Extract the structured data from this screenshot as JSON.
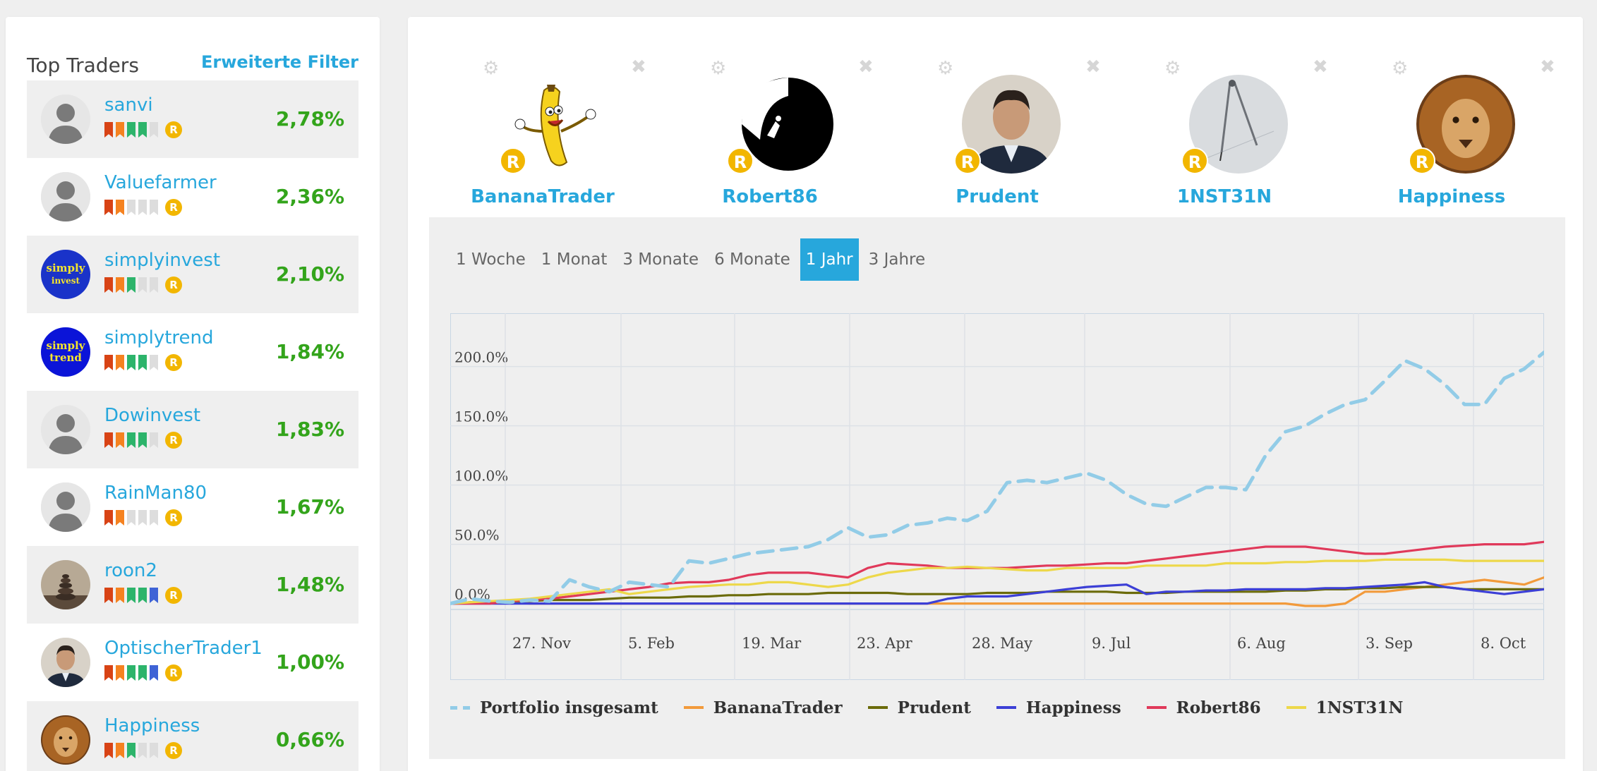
{
  "left_panel": {
    "title": "Top Traders",
    "filter_link": "Erweiterte Filter",
    "traders": [
      {
        "name": "sanvi",
        "perf": "2,78%",
        "avatar": "silhouette",
        "flags": [
          "#d84315",
          "#f58220",
          "#2db46b",
          "#2db46b",
          "#dddddd"
        ]
      },
      {
        "name": "Valuefarmer",
        "perf": "2,36%",
        "avatar": "silhouette",
        "flags": [
          "#d84315",
          "#f58220",
          "#dddddd",
          "#dddddd",
          "#dddddd"
        ]
      },
      {
        "name": "simplyinvest",
        "perf": "2,10%",
        "avatar": "simply-invest",
        "flags": [
          "#d84315",
          "#f58220",
          "#2db46b",
          "#dddddd",
          "#dddddd"
        ],
        "logo_text": [
          "simply",
          "invest"
        ]
      },
      {
        "name": "simplytrend",
        "perf": "1,84%",
        "avatar": "simply-trend",
        "flags": [
          "#d84315",
          "#f58220",
          "#2db46b",
          "#2db46b",
          "#dddddd"
        ],
        "logo_text": [
          "simply",
          "trend"
        ]
      },
      {
        "name": "Dowinvest",
        "perf": "1,83%",
        "avatar": "silhouette",
        "flags": [
          "#d84315",
          "#f58220",
          "#2db46b",
          "#2db46b",
          "#dddddd"
        ]
      },
      {
        "name": "RainMan80",
        "perf": "1,67%",
        "avatar": "silhouette",
        "flags": [
          "#d84315",
          "#f58220",
          "#dddddd",
          "#dddddd",
          "#dddddd"
        ]
      },
      {
        "name": "roon2",
        "perf": "1,48%",
        "avatar": "stones",
        "flags": [
          "#d84315",
          "#f58220",
          "#2db46b",
          "#2db46b",
          "#3e63d6"
        ]
      },
      {
        "name": "OptischerTrader1",
        "perf": "1,00%",
        "avatar": "man-portrait",
        "flags": [
          "#d84315",
          "#f58220",
          "#2db46b",
          "#2db46b",
          "#3e63d6"
        ]
      },
      {
        "name": "Happiness",
        "perf": "0,66%",
        "avatar": "lion",
        "flags": [
          "#d84315",
          "#f58220",
          "#2db46b",
          "#dddddd",
          "#dddddd"
        ]
      }
    ],
    "rating_badge": "R"
  },
  "compare": {
    "cards": [
      {
        "name": "BananaTrader",
        "avatar": "banana"
      },
      {
        "name": "Robert86",
        "avatar": "climber"
      },
      {
        "name": "Prudent",
        "avatar": "man-portrait"
      },
      {
        "name": "1NST31N",
        "avatar": "compass"
      },
      {
        "name": "Happiness",
        "avatar": "lion"
      }
    ],
    "rating_badge": "R",
    "gear_glyph": "⚙",
    "close_glyph": "✖"
  },
  "range_tabs": [
    {
      "label": "1 Woche",
      "active": false
    },
    {
      "label": "1 Monat",
      "active": false
    },
    {
      "label": "3 Monate",
      "active": false
    },
    {
      "label": "6 Monate",
      "active": false
    },
    {
      "label": "1 Jahr",
      "active": true
    },
    {
      "label": "3 Jahre",
      "active": false
    }
  ],
  "colors": {
    "accent": "#27a7dc",
    "positive": "#33a41b",
    "rating": "#f2b600"
  },
  "chart_data": {
    "type": "line",
    "x_ticks": [
      "27. Nov",
      "5. Feb",
      "19. Mar",
      "23. Apr",
      "28. May",
      "9. Jul",
      "6. Aug",
      "3. Sep",
      "8. Oct"
    ],
    "y_ticks": [
      "0.0%",
      "50.0%",
      "100.0%",
      "150.0%",
      "200.0%"
    ],
    "ylim": [
      -5,
      245
    ],
    "grid": true,
    "legend_position": "bottom",
    "series": [
      {
        "name": "Portfolio insgesamt",
        "color": "#92cce7",
        "dashed": true,
        "values": [
          0,
          4,
          2,
          1,
          3,
          2,
          20,
          14,
          10,
          18,
          16,
          14,
          36,
          34,
          38,
          42,
          44,
          46,
          48,
          54,
          64,
          56,
          58,
          66,
          68,
          72,
          70,
          78,
          102,
          104,
          102,
          106,
          110,
          104,
          92,
          84,
          82,
          90,
          98,
          98,
          96,
          125,
          145,
          150,
          160,
          168,
          172,
          188,
          205,
          198,
          185,
          168,
          168,
          190,
          198,
          212
        ]
      },
      {
        "name": "BananaTrader",
        "color": "#f29a3b",
        "values": [
          0,
          1,
          1,
          1,
          0,
          0,
          0,
          0,
          0,
          0,
          0,
          0,
          0,
          0,
          0,
          0,
          0,
          0,
          0,
          0,
          0,
          0,
          0,
          0,
          0,
          0,
          0,
          0,
          0,
          0,
          0,
          0,
          0,
          0,
          0,
          0,
          0,
          0,
          0,
          0,
          0,
          0,
          0,
          -2,
          -2,
          0,
          10,
          10,
          12,
          14,
          16,
          18,
          20,
          18,
          16,
          22
        ]
      },
      {
        "name": "Prudent",
        "color": "#6b6b0a",
        "values": [
          0,
          1,
          2,
          2,
          2,
          3,
          3,
          3,
          4,
          5,
          5,
          5,
          6,
          6,
          7,
          7,
          8,
          8,
          8,
          9,
          9,
          9,
          9,
          8,
          8,
          8,
          8,
          9,
          9,
          9,
          10,
          10,
          10,
          10,
          9,
          9,
          9,
          10,
          10,
          10,
          10,
          10,
          11,
          11,
          12,
          12,
          13,
          13,
          14,
          14,
          14,
          12,
          12,
          12,
          12,
          12
        ]
      },
      {
        "name": "Happiness",
        "color": "#3c3fd6",
        "values": [
          0,
          0,
          0,
          0,
          0,
          0,
          0,
          0,
          0,
          0,
          0,
          0,
          0,
          0,
          0,
          0,
          0,
          0,
          0,
          0,
          0,
          0,
          0,
          0,
          0,
          4,
          6,
          6,
          6,
          8,
          10,
          12,
          14,
          15,
          16,
          8,
          10,
          10,
          11,
          11,
          12,
          12,
          12,
          12,
          13,
          13,
          14,
          15,
          16,
          18,
          14,
          12,
          10,
          8,
          10,
          12
        ]
      },
      {
        "name": "Robert86",
        "color": "#e0395a",
        "values": [
          0,
          0,
          0,
          2,
          3,
          4,
          6,
          8,
          10,
          12,
          14,
          17,
          18,
          18,
          20,
          24,
          26,
          26,
          26,
          24,
          22,
          30,
          34,
          33,
          32,
          30,
          30,
          30,
          30,
          31,
          32,
          32,
          33,
          34,
          34,
          36,
          38,
          40,
          42,
          44,
          46,
          48,
          48,
          48,
          46,
          44,
          42,
          42,
          44,
          46,
          48,
          49,
          50,
          50,
          50,
          52
        ]
      },
      {
        "name": "1NST31N",
        "color": "#edd84a",
        "values": [
          0,
          1,
          2,
          3,
          4,
          6,
          8,
          10,
          12,
          8,
          10,
          12,
          14,
          15,
          16,
          16,
          18,
          18,
          16,
          14,
          16,
          22,
          26,
          28,
          30,
          30,
          31,
          30,
          29,
          28,
          28,
          30,
          30,
          30,
          30,
          32,
          32,
          32,
          32,
          34,
          34,
          34,
          35,
          35,
          36,
          36,
          36,
          37,
          37,
          37,
          37,
          36,
          36,
          36,
          36,
          36
        ]
      }
    ]
  }
}
